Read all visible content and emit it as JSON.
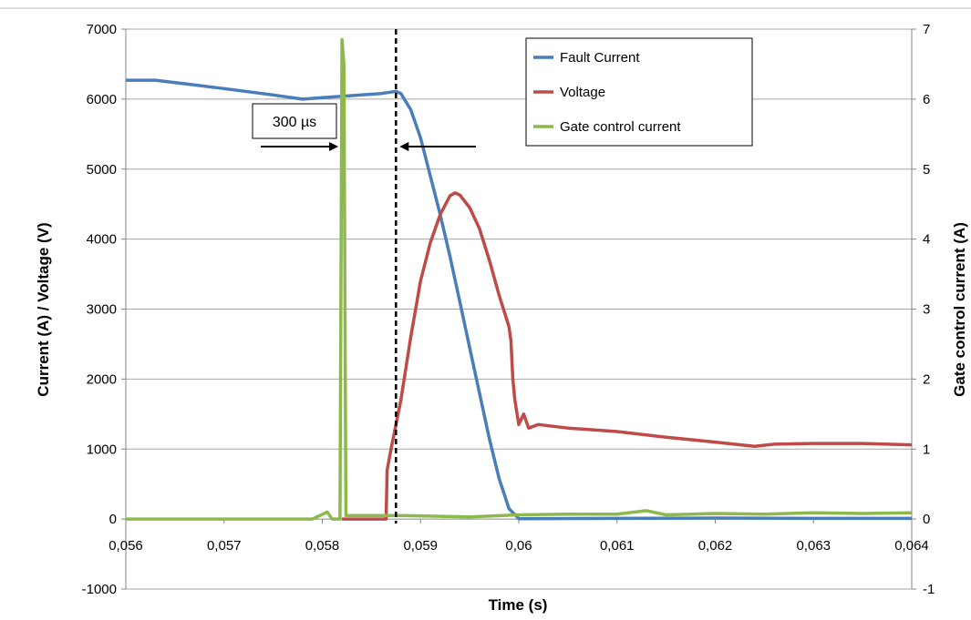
{
  "chart_data": {
    "type": "line",
    "xlabel": "Time (s)",
    "ylabel": "Current (A) / Voltage (V)",
    "y2label": "Gate control current (A)",
    "xlim": [
      0.056,
      0.064
    ],
    "ylim": [
      -1000,
      7000
    ],
    "y2lim": [
      -1,
      7
    ],
    "grid": true,
    "legend_position": "top-right",
    "x_ticks": [
      "0,056",
      "0,057",
      "0,058",
      "0,059",
      "0,06",
      "0,061",
      "0,062",
      "0,063",
      "0,064"
    ],
    "x_tick_values": [
      0.056,
      0.057,
      0.058,
      0.059,
      0.06,
      0.061,
      0.062,
      0.063,
      0.064
    ],
    "y_ticks": [
      "-1000",
      "0",
      "1000",
      "2000",
      "3000",
      "4000",
      "5000",
      "6000",
      "7000"
    ],
    "y_tick_values": [
      -1000,
      0,
      1000,
      2000,
      3000,
      4000,
      5000,
      6000,
      7000
    ],
    "y2_ticks": [
      "-1",
      "0",
      "1",
      "2",
      "3",
      "4",
      "5",
      "6",
      "7"
    ],
    "y2_tick_values": [
      -1,
      0,
      1,
      2,
      3,
      4,
      5,
      6,
      7
    ],
    "series": [
      {
        "name": "Fault Current",
        "axis": "left",
        "color": "#4a7ebb",
        "points": [
          [
            0.056,
            6270
          ],
          [
            0.0563,
            6270
          ],
          [
            0.0566,
            6220
          ],
          [
            0.057,
            6150
          ],
          [
            0.0575,
            6060
          ],
          [
            0.0578,
            6000
          ],
          [
            0.058,
            6020
          ],
          [
            0.0583,
            6050
          ],
          [
            0.0586,
            6080
          ],
          [
            0.05875,
            6110
          ],
          [
            0.0588,
            6080
          ],
          [
            0.0589,
            5850
          ],
          [
            0.059,
            5450
          ],
          [
            0.0591,
            4900
          ],
          [
            0.0592,
            4350
          ],
          [
            0.0593,
            3750
          ],
          [
            0.0594,
            3100
          ],
          [
            0.0595,
            2450
          ],
          [
            0.0596,
            1800
          ],
          [
            0.0597,
            1150
          ],
          [
            0.0598,
            580
          ],
          [
            0.0599,
            150
          ],
          [
            0.06,
            5
          ],
          [
            0.061,
            10
          ],
          [
            0.062,
            15
          ],
          [
            0.063,
            10
          ],
          [
            0.064,
            10
          ]
        ]
      },
      {
        "name": "Voltage",
        "axis": "left",
        "color": "#be4b48",
        "points": [
          [
            0.0582,
            0
          ],
          [
            0.05865,
            0
          ],
          [
            0.05866,
            700
          ],
          [
            0.0587,
            1000
          ],
          [
            0.0588,
            1700
          ],
          [
            0.0589,
            2600
          ],
          [
            0.059,
            3400
          ],
          [
            0.0591,
            3950
          ],
          [
            0.0592,
            4350
          ],
          [
            0.0593,
            4620
          ],
          [
            0.05935,
            4660
          ],
          [
            0.0594,
            4630
          ],
          [
            0.0595,
            4450
          ],
          [
            0.0596,
            4150
          ],
          [
            0.0597,
            3700
          ],
          [
            0.0598,
            3200
          ],
          [
            0.0599,
            2750
          ],
          [
            0.05992,
            2550
          ],
          [
            0.05994,
            2000
          ],
          [
            0.05996,
            1700
          ],
          [
            0.06,
            1350
          ],
          [
            0.06005,
            1500
          ],
          [
            0.0601,
            1300
          ],
          [
            0.0602,
            1350
          ],
          [
            0.0605,
            1300
          ],
          [
            0.061,
            1250
          ],
          [
            0.0615,
            1170
          ],
          [
            0.062,
            1100
          ],
          [
            0.0624,
            1040
          ],
          [
            0.0626,
            1070
          ],
          [
            0.063,
            1080
          ],
          [
            0.0635,
            1080
          ],
          [
            0.064,
            1060
          ]
        ]
      },
      {
        "name": "Gate control current",
        "axis": "right",
        "color": "#8cb84e",
        "points": [
          [
            0.056,
            0
          ],
          [
            0.0575,
            0
          ],
          [
            0.0579,
            0
          ],
          [
            0.05805,
            0.1
          ],
          [
            0.0581,
            0
          ],
          [
            0.05818,
            0
          ],
          [
            0.0582,
            6.85
          ],
          [
            0.05822,
            6.5
          ],
          [
            0.05824,
            0.05
          ],
          [
            0.0585,
            0.05
          ],
          [
            0.0588,
            0.05
          ],
          [
            0.0595,
            0.03
          ],
          [
            0.06,
            0.06
          ],
          [
            0.0605,
            0.07
          ],
          [
            0.061,
            0.07
          ],
          [
            0.0613,
            0.12
          ],
          [
            0.0615,
            0.06
          ],
          [
            0.062,
            0.08
          ],
          [
            0.0625,
            0.07
          ],
          [
            0.063,
            0.09
          ],
          [
            0.0635,
            0.08
          ],
          [
            0.064,
            0.09
          ]
        ]
      }
    ],
    "annotations": {
      "interval_label": "300 µs",
      "dashed_line_x": 0.05875,
      "pulse_x": 0.0582
    },
    "legend": [
      "Fault Current",
      "Voltage",
      "Gate control current"
    ]
  }
}
